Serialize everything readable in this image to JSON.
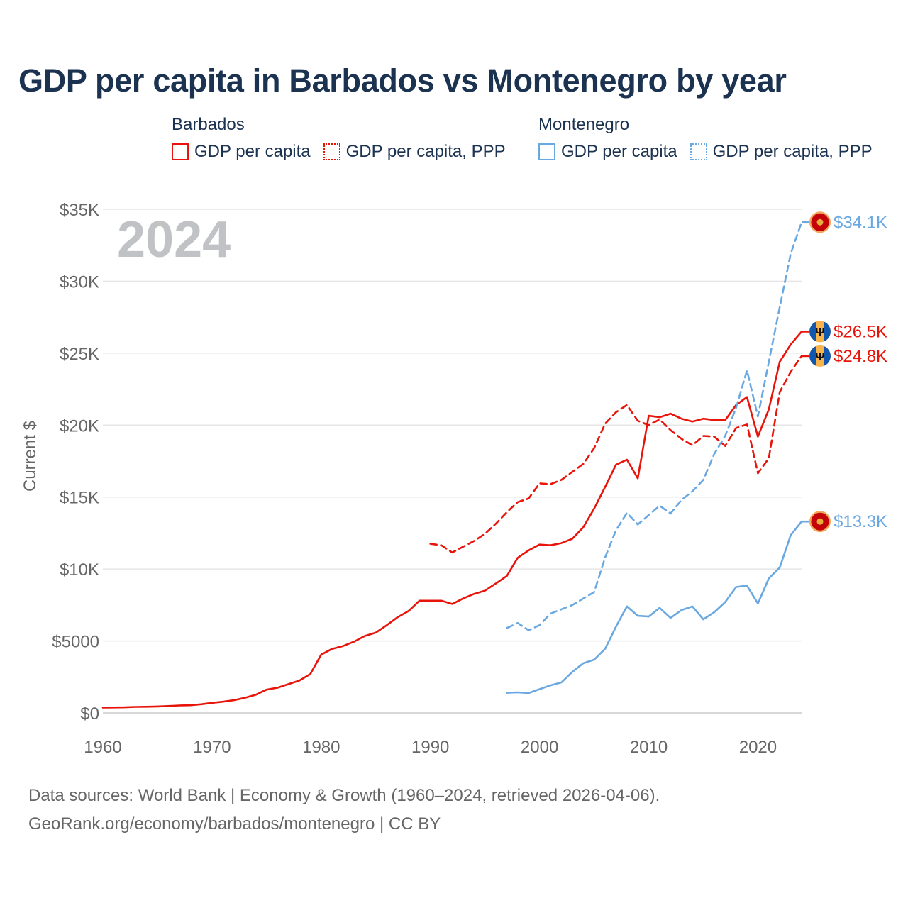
{
  "title": "GDP per capita in Barbados vs Montenegro by year",
  "legend": [
    {
      "country": "Barbados",
      "items": [
        {
          "label": "GDP per capita",
          "color": "#e8140a",
          "style": "solid"
        },
        {
          "label": "GDP per capita, PPP",
          "color": "#e8140a",
          "style": "dotted"
        }
      ]
    },
    {
      "country": "Montenegro",
      "items": [
        {
          "label": "GDP per capita",
          "color": "#6aa8e2",
          "style": "solid"
        },
        {
          "label": "GDP per capita, PPP",
          "color": "#6aa8e2",
          "style": "dotted"
        }
      ]
    }
  ],
  "year_label": "2024",
  "source": {
    "line1": "Data sources: World Bank | Economy & Growth (1960–2024, retrieved 2026-04-06).",
    "line2": "GeoRank.org/economy/barbados/montenegro | CC BY"
  },
  "chart_data": {
    "type": "line",
    "title": "GDP per capita in Barbados vs Montenegro by year",
    "xlabel": "",
    "ylabel": "Current $",
    "xlim": [
      1960,
      2024
    ],
    "ylim": [
      0,
      35000
    ],
    "grid": true,
    "x_ticks": [
      1960,
      1970,
      1980,
      1990,
      2000,
      2010,
      2020
    ],
    "y_ticks": [
      0,
      5000,
      10000,
      15000,
      20000,
      25000,
      30000,
      35000
    ],
    "y_tick_labels": [
      "$0",
      "$5000",
      "$10K",
      "$15K",
      "$20K",
      "$25K",
      "$30K",
      "$35K"
    ],
    "series": [
      {
        "name": "Barbados GDP per capita",
        "country": "Barbados",
        "color": "#e8140a",
        "dashed": false,
        "end_label": "$26.5K",
        "flag": "barbados",
        "x": [
          1960,
          1961,
          1962,
          1963,
          1964,
          1965,
          1966,
          1967,
          1968,
          1969,
          1970,
          1971,
          1972,
          1973,
          1974,
          1975,
          1976,
          1977,
          1978,
          1979,
          1980,
          1981,
          1982,
          1983,
          1984,
          1985,
          1986,
          1987,
          1988,
          1989,
          1990,
          1991,
          1992,
          1993,
          1994,
          1995,
          1996,
          1997,
          1998,
          1999,
          2000,
          2001,
          2002,
          2003,
          2004,
          2005,
          2006,
          2007,
          2008,
          2009,
          2010,
          2011,
          2012,
          2013,
          2014,
          2015,
          2016,
          2017,
          2018,
          2019,
          2020,
          2021,
          2022,
          2023,
          2024
        ],
        "values": [
          370,
          380,
          390,
          420,
          430,
          450,
          480,
          520,
          530,
          600,
          700,
          780,
          880,
          1050,
          1260,
          1620,
          1750,
          2000,
          2250,
          2700,
          4050,
          4450,
          4650,
          4950,
          5350,
          5580,
          6100,
          6650,
          7080,
          7800,
          7800,
          7800,
          7570,
          7950,
          8270,
          8500,
          9000,
          9520,
          10780,
          11300,
          11700,
          11650,
          11800,
          12100,
          12900,
          14200,
          15700,
          17250,
          17600,
          16300,
          20650,
          20550,
          20800,
          20450,
          20250,
          20450,
          20350,
          20350,
          21400,
          21950,
          19200,
          21100,
          24400,
          25600,
          26500
        ]
      },
      {
        "name": "Barbados GDP per capita, PPP",
        "country": "Barbados",
        "color": "#e8140a",
        "dashed": true,
        "end_label": "$24.8K",
        "flag": "barbados",
        "x": [
          1990,
          1991,
          1992,
          1993,
          1994,
          1995,
          1996,
          1997,
          1998,
          1999,
          2000,
          2001,
          2002,
          2003,
          2004,
          2005,
          2006,
          2007,
          2008,
          2009,
          2010,
          2011,
          2012,
          2013,
          2014,
          2015,
          2016,
          2017,
          2018,
          2019,
          2020,
          2021,
          2022,
          2023,
          2024
        ],
        "values": [
          11750,
          11650,
          11150,
          11550,
          11950,
          12450,
          13150,
          13950,
          14650,
          14900,
          15950,
          15900,
          16200,
          16750,
          17300,
          18400,
          20100,
          20900,
          21400,
          20300,
          20000,
          20400,
          19650,
          19050,
          18600,
          19250,
          19200,
          18550,
          19800,
          20050,
          16650,
          17700,
          22300,
          23700,
          24800
        ]
      },
      {
        "name": "Montenegro GDP per capita",
        "country": "Montenegro",
        "color": "#6aa8e2",
        "dashed": false,
        "end_label": "$13.3K",
        "flag": "montenegro",
        "x": [
          1997,
          1998,
          1999,
          2000,
          2001,
          2002,
          2003,
          2004,
          2005,
          2006,
          2007,
          2008,
          2009,
          2010,
          2011,
          2012,
          2013,
          2014,
          2015,
          2016,
          2017,
          2018,
          2019,
          2020,
          2021,
          2022,
          2023,
          2024
        ],
        "values": [
          1400,
          1430,
          1380,
          1650,
          1920,
          2120,
          2850,
          3450,
          3700,
          4450,
          6000,
          7400,
          6750,
          6700,
          7300,
          6600,
          7150,
          7400,
          6500,
          7000,
          7700,
          8750,
          8850,
          7600,
          9350,
          10100,
          12350,
          13300
        ]
      },
      {
        "name": "Montenegro GDP per capita, PPP",
        "country": "Montenegro",
        "color": "#6aa8e2",
        "dashed": true,
        "end_label": "$34.1K",
        "flag": "montenegro",
        "x": [
          1997,
          1998,
          1999,
          2000,
          2001,
          2002,
          2003,
          2004,
          2005,
          2006,
          2007,
          2008,
          2009,
          2010,
          2011,
          2012,
          2013,
          2014,
          2015,
          2016,
          2017,
          2018,
          2019,
          2020,
          2021,
          2022,
          2023,
          2024
        ],
        "values": [
          5900,
          6250,
          5750,
          6100,
          6900,
          7200,
          7500,
          7950,
          8400,
          10800,
          12700,
          13900,
          13100,
          13750,
          14400,
          13850,
          14800,
          15400,
          16200,
          18000,
          19250,
          21200,
          23800,
          20600,
          24400,
          28200,
          31900,
          34100
        ]
      }
    ]
  }
}
